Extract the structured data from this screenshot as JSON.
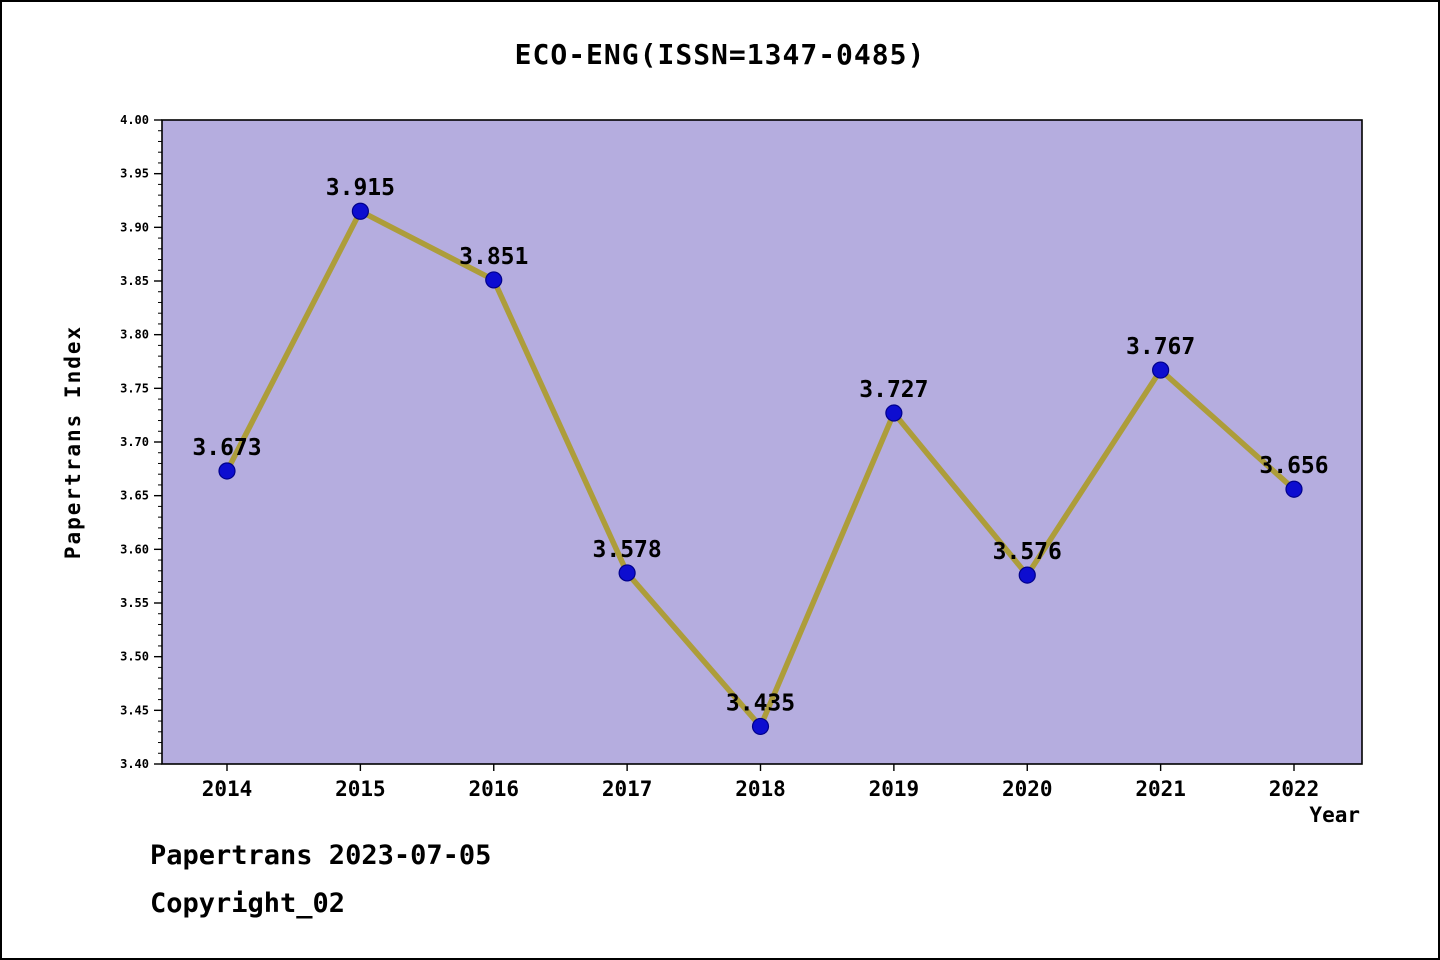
{
  "title": "ECO-ENG(ISSN=1347-0485)",
  "footer": {
    "line1": "Papertrans 2023-07-05",
    "line2": "Copyright_02"
  },
  "chart_data": {
    "type": "line",
    "title": "ECO-ENG(ISSN=1347-0485)",
    "xlabel": "Year",
    "ylabel": "Papertrans Index",
    "x": [
      2014,
      2015,
      2016,
      2017,
      2018,
      2019,
      2020,
      2021,
      2022
    ],
    "values": [
      3.673,
      3.915,
      3.851,
      3.578,
      3.435,
      3.727,
      3.576,
      3.767,
      3.656
    ],
    "point_labels": [
      "3.673",
      "3.915",
      "3.851",
      "3.578",
      "3.435",
      "3.727",
      "3.576",
      "3.767",
      "3.656"
    ],
    "xticks": [
      "2014",
      "2015",
      "2016",
      "2017",
      "2018",
      "2019",
      "2020",
      "2021",
      "2022"
    ],
    "yticks": [
      "3.40",
      "3.45",
      "3.50",
      "3.55",
      "3.60",
      "3.65",
      "3.70",
      "3.75",
      "3.80",
      "3.85",
      "3.90",
      "3.95",
      "4.00"
    ],
    "ylim": [
      3.4,
      4.0
    ],
    "ytick_major_step": 0.05,
    "ytick_minor_step": 0.01,
    "grid": "off",
    "legend": "none",
    "colors": {
      "line": "#ad9d3a",
      "marker_fill": "#0d0dd0",
      "marker_edge": "#00008b",
      "plot_bg": "#b5addf",
      "axis": "#000000",
      "text": "#000000"
    }
  }
}
